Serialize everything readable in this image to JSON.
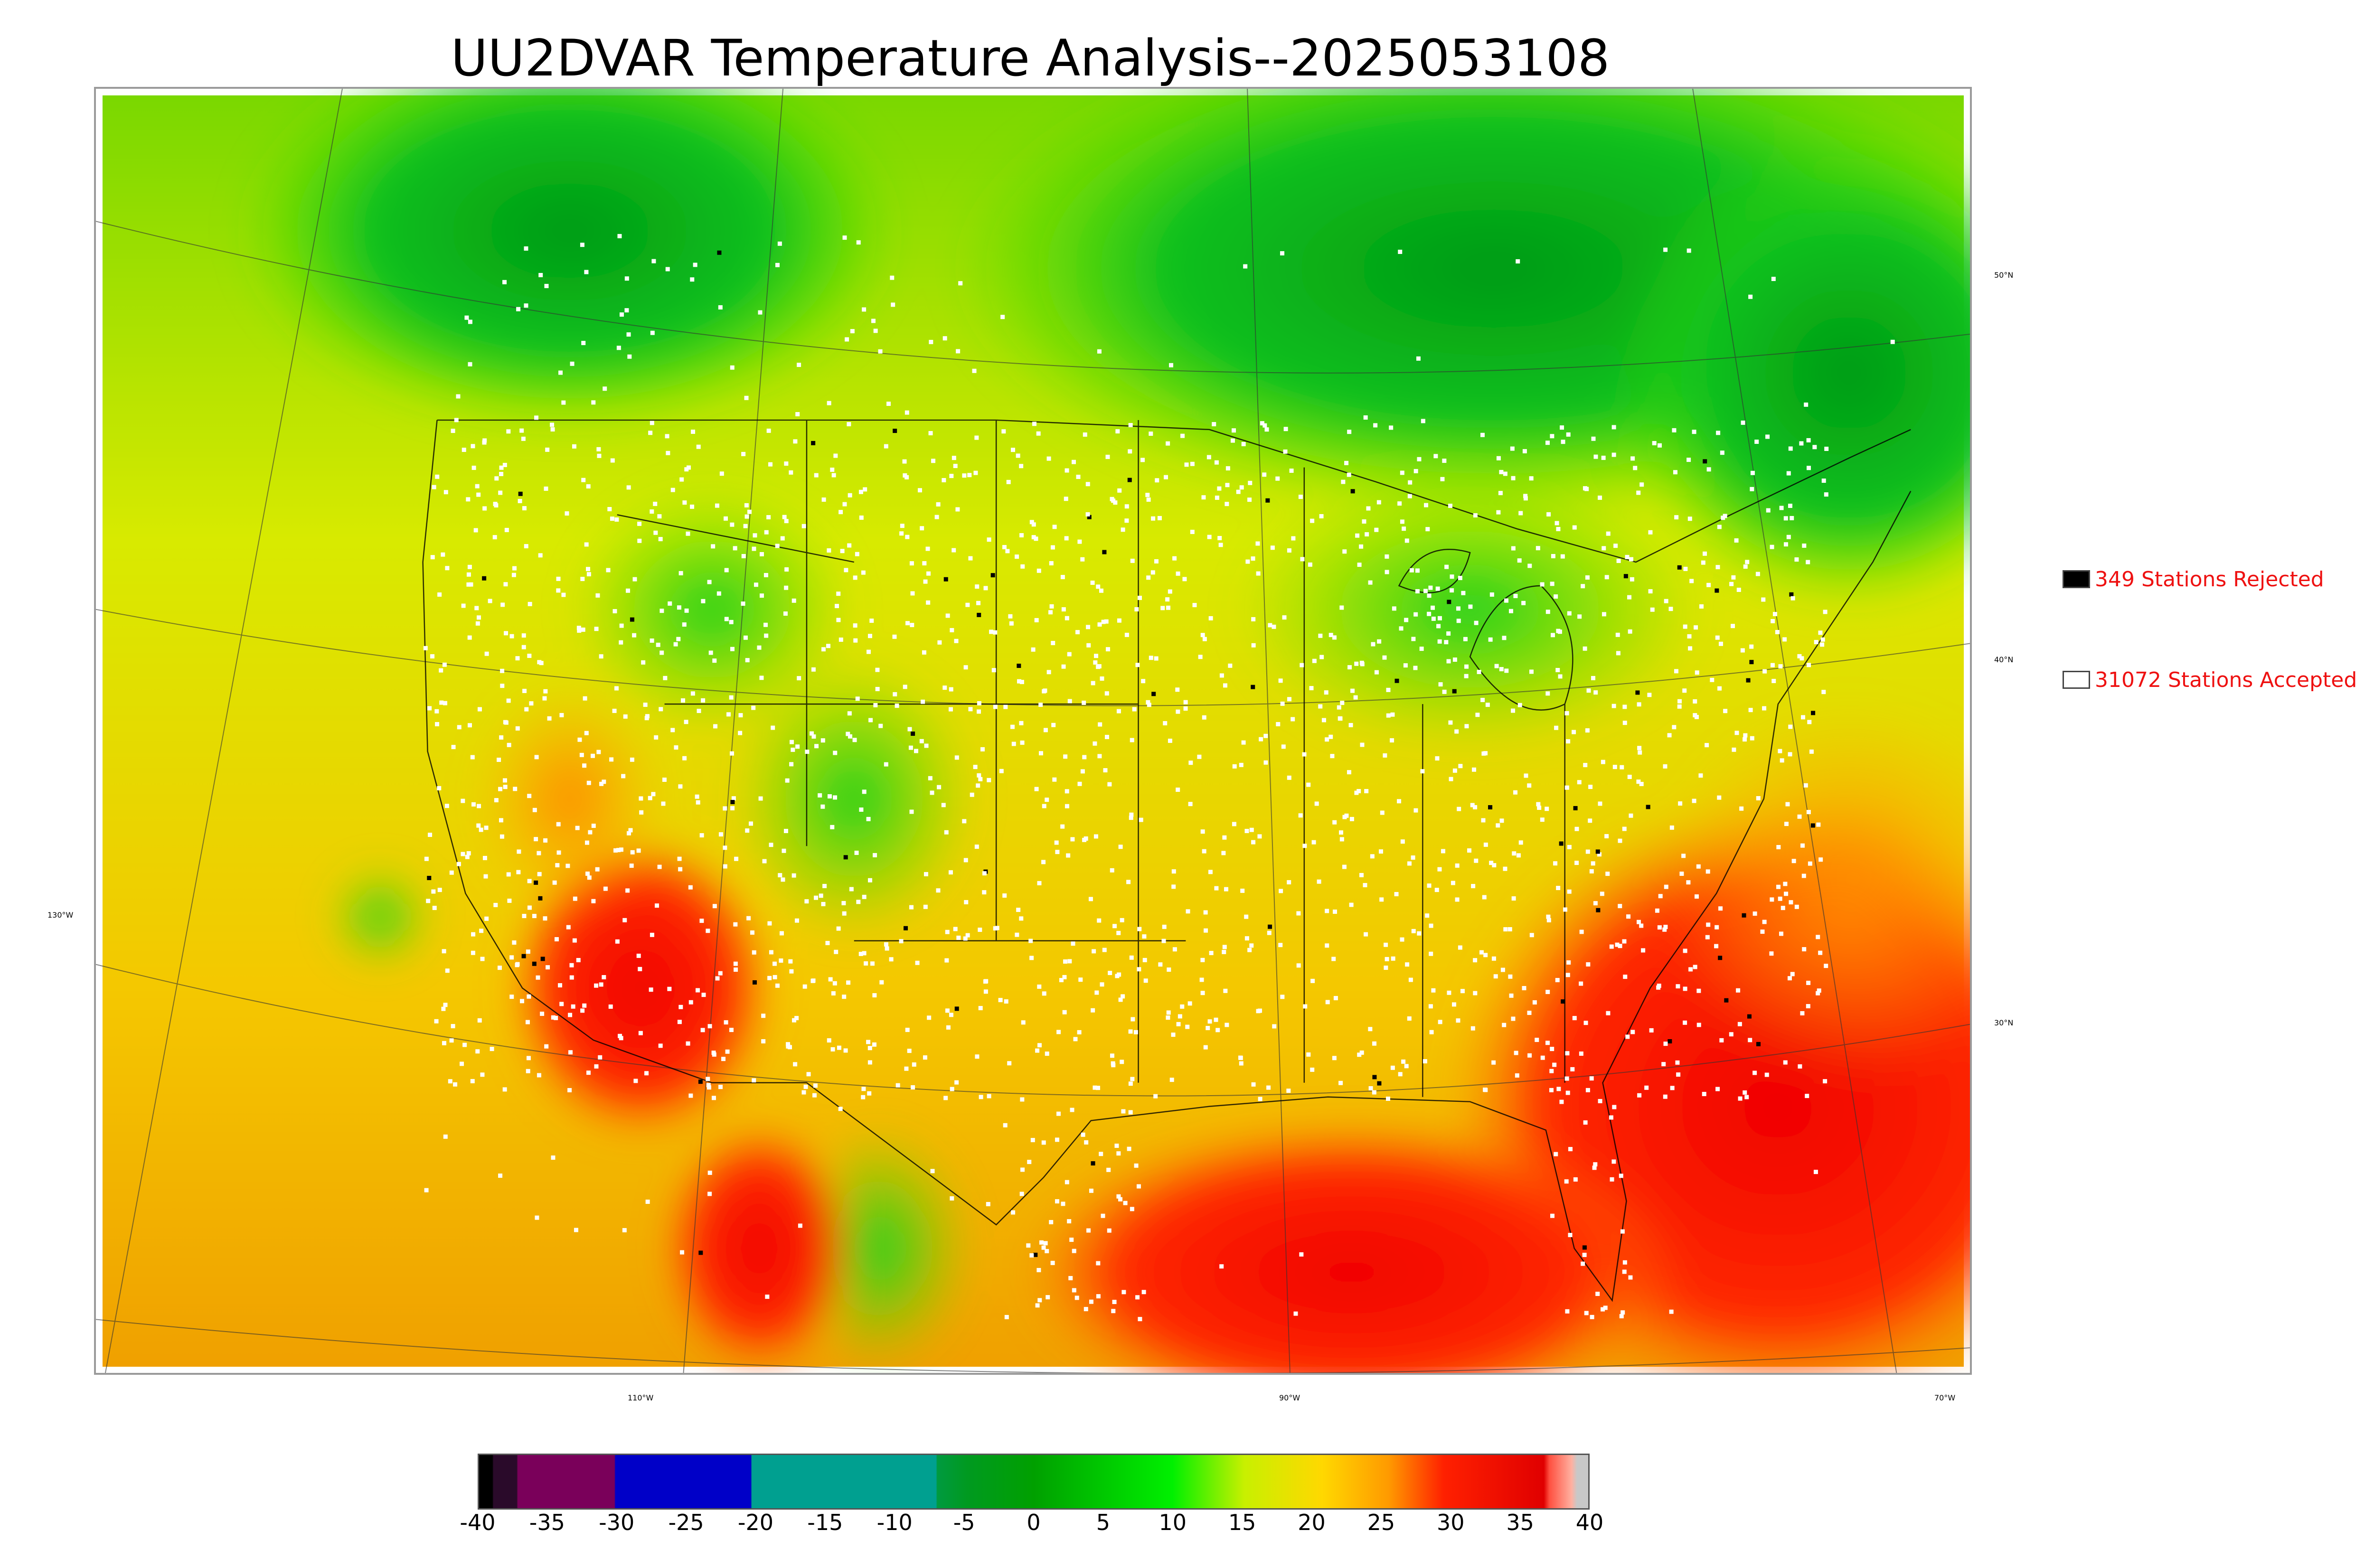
{
  "title": "UU2DVAR Temperature Analysis--2025053108",
  "legend": {
    "rejected": {
      "label": "349 Stations Rejected",
      "color": "#000000"
    },
    "accepted": {
      "label": "31072 Stations Accepted",
      "color": "#ffffff"
    }
  },
  "lat_labels": [
    "50°N",
    "40°N",
    "30°N"
  ],
  "lon_labels": [
    "130°W",
    "110°W",
    "90°W",
    "70°W"
  ],
  "colorbar": {
    "ticks": [
      "-40",
      "-35",
      "-30",
      "-25",
      "-20",
      "-15",
      "-10",
      "-5",
      "0",
      "5",
      "10",
      "15",
      "20",
      "25",
      "30",
      "35",
      "40"
    ],
    "range": [
      -40,
      40
    ],
    "units_shown": ""
  },
  "colors": {
    "cold": "#00a000",
    "mild": "#e8e800",
    "warm": "#ff9a00",
    "hot": "#ee0000"
  }
}
